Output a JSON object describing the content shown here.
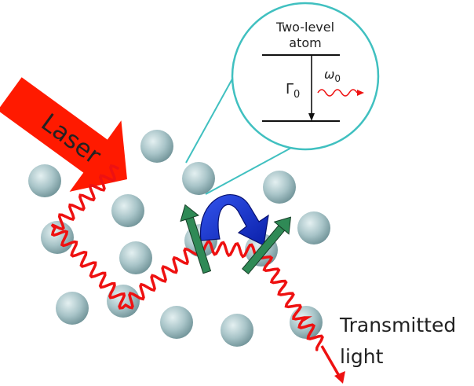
{
  "labels": {
    "laser": "Laser",
    "inset_title_line1": "Two-level",
    "inset_title_line2": "atom",
    "decay_rate": "Γ",
    "decay_rate_sub": "0",
    "frequency": "ω",
    "frequency_sub": "0",
    "output_line1": "Transmitted",
    "output_line2": "light"
  },
  "colors": {
    "laser": "#ff1a00",
    "photon": "#ee1111",
    "atom": "#a8c4c8",
    "inset_border": "#40c0c0",
    "dipole": "#2f8a56",
    "transfer_arrow": "#1133cc"
  }
}
